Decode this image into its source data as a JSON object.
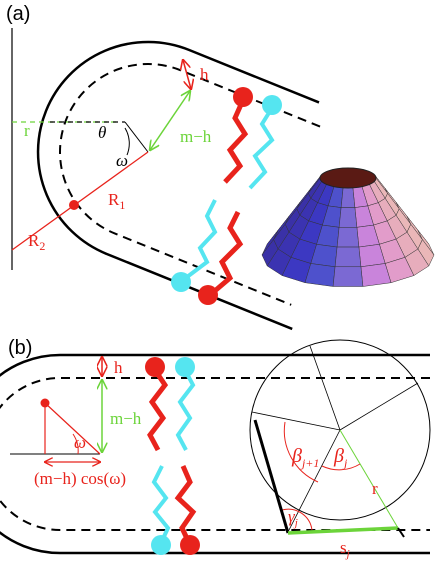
{
  "panel_a": {
    "label": "(a)",
    "h": "h",
    "r": "r",
    "theta": "θ",
    "m_minus_h": "m−h",
    "omega": "ω",
    "R1": {
      "base": "R",
      "sub": "1"
    },
    "R2": {
      "base": "R",
      "sub": "2"
    }
  },
  "panel_b": {
    "label": "(b)",
    "h": "h",
    "m_minus_h": "m−h",
    "omega": "ω",
    "projection": "(m−h) cos(ω)",
    "beta_next": {
      "base": "β",
      "sub": "j+1"
    },
    "beta": {
      "base": "β",
      "sub": "j"
    },
    "r": "r",
    "gamma": {
      "base": "γ",
      "sub": "j"
    },
    "s": {
      "base": "s",
      "sub": "j"
    }
  }
}
